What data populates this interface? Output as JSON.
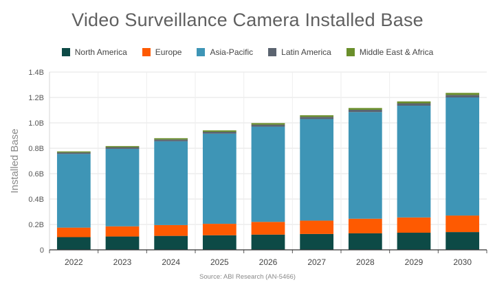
{
  "chart_data": {
    "type": "bar",
    "stacked": true,
    "title": "Video Surveillance Camera Installed Base",
    "xlabel": "",
    "ylabel": "Installed Base",
    "categories": [
      "2022",
      "2023",
      "2024",
      "2025",
      "2026",
      "2027",
      "2028",
      "2029",
      "2030"
    ],
    "ylim": [
      0,
      1.4
    ],
    "yticks": [
      0,
      0.2,
      0.4,
      0.6,
      0.8,
      1.0,
      1.2,
      1.4
    ],
    "ytick_labels": [
      "0",
      "0.2B",
      "0.4B",
      "0.6B",
      "0.8B",
      "1.0B",
      "1.2B",
      "1.4B"
    ],
    "grid": true,
    "legend_position": "top",
    "series": [
      {
        "name": "North America",
        "color": "#0d4a46",
        "values": [
          0.1,
          0.105,
          0.11,
          0.115,
          0.12,
          0.125,
          0.13,
          0.135,
          0.14
        ]
      },
      {
        "name": "Europe",
        "color": "#fe5a01",
        "values": [
          0.075,
          0.08,
          0.085,
          0.09,
          0.1,
          0.105,
          0.115,
          0.12,
          0.13
        ]
      },
      {
        "name": "Asia-Pacific",
        "color": "#3e95b6",
        "values": [
          0.58,
          0.61,
          0.66,
          0.71,
          0.75,
          0.8,
          0.84,
          0.88,
          0.93
        ]
      },
      {
        "name": "Latin America",
        "color": "#5b6470",
        "values": [
          0.012,
          0.013,
          0.014,
          0.015,
          0.016,
          0.017,
          0.018,
          0.019,
          0.02
        ]
      },
      {
        "name": "Middle East & Africa",
        "color": "#6a8f2b",
        "values": [
          0.008,
          0.009,
          0.01,
          0.011,
          0.012,
          0.013,
          0.014,
          0.015,
          0.016
        ]
      }
    ],
    "source": "Source: ABI Research (AN-5466)"
  }
}
